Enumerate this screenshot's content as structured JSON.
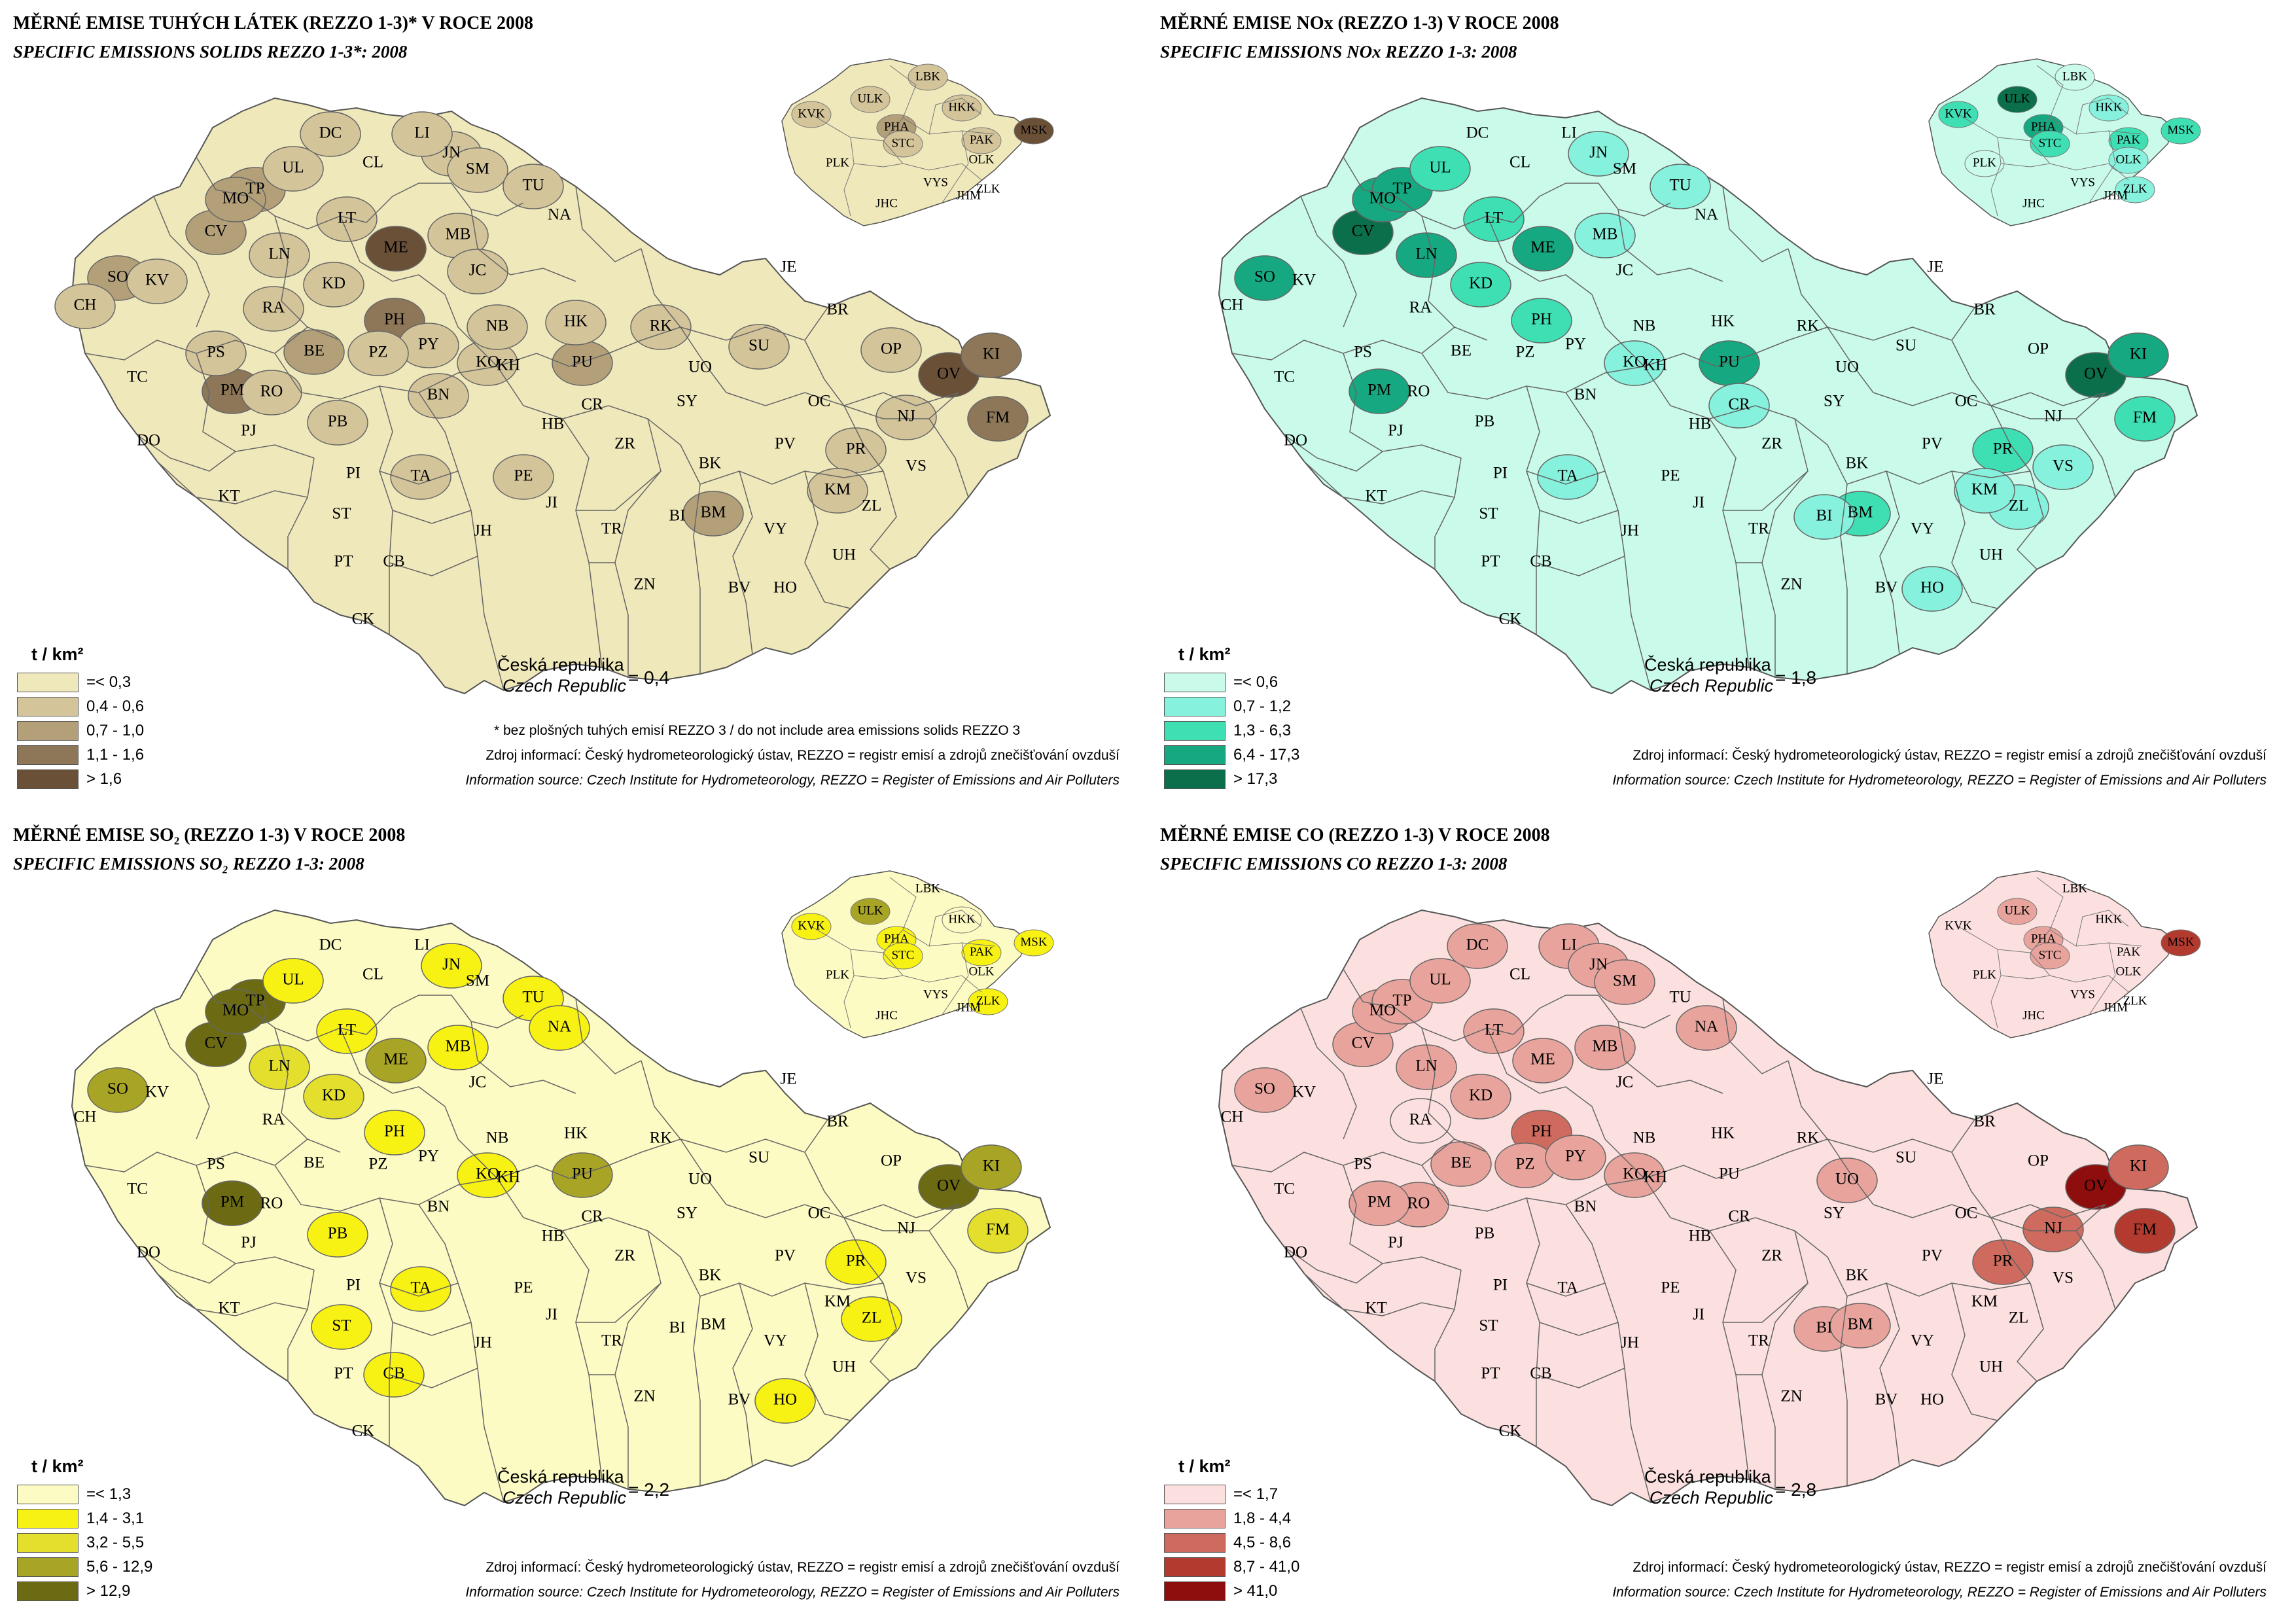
{
  "panels": [
    {
      "title": "MĚRNÉ EMISE TUHÝCH LÁTEK (REZZO 1-3)*  V ROCE 2008",
      "subtitle": "SPECIFIC EMISSIONS SOLIDS REZZO 1-3*: 2008",
      "unit": "t / km²",
      "legend": [
        {
          "label": "=<  0,3",
          "color": "#efe8bb"
        },
        {
          "label": "0,4 - 0,6",
          "color": "#d3c49a"
        },
        {
          "label": "0,7 - 1,0",
          "color": "#b3a079"
        },
        {
          "label": "1,1 - 1,6",
          "color": "#8e7758"
        },
        {
          "label": ">  1,6",
          "color": "#6b5038"
        }
      ],
      "cr_cz": "Česká republika",
      "cr_en": "Czech Republic",
      "cr_value": "=  0,4",
      "note": "* bez plošných tuhých emisí REZZO 3 / do not include area emissions solids REZZO 3",
      "source_cz": "Zdroj informací: Český hydrometeorologický ústav, REZZO = registr emisí a zdrojů znečišťování ovzduší",
      "source_en": "Information source: Czech Institute for Hydrometeorology, REZZO = Register of Emissions and Air Polluters",
      "districts": {
        "CV": 2,
        "TP": 2,
        "MO": 2,
        "SO": 2,
        "ME": 4,
        "PH": 3,
        "OV": 4,
        "KI": 3,
        "FM": 3,
        "BE": 2,
        "PM": 3,
        "PU": 2,
        "BM": 2,
        "UL": 1,
        "LT": 1,
        "LN": 1,
        "KD": 1,
        "MB": 1,
        "JN": 1,
        "SM": 1,
        "LI": 1,
        "DC": 1,
        "RA": 1,
        "PY": 1,
        "KO": 1,
        "NB": 1,
        "HK": 1,
        "RK": 1,
        "SU": 1,
        "OP": 1,
        "PR": 1,
        "NJ": 1,
        "KM": 1,
        "PZ": 1,
        "RO": 1,
        "PB": 1,
        "BN": 1,
        "TA": 1,
        "PE": 1,
        "JC": 1,
        "TU": 1,
        "PS": 1,
        "CH": 1,
        "KV": 1
      },
      "inset": {
        "PHA": 2,
        "STC": 1,
        "ULK": 1,
        "LBK": 1,
        "HKK": 1,
        "PAK": 1,
        "KVK": 1,
        "MSK": 4
      }
    },
    {
      "title": "MĚRNÉ EMISE NOx (REZZO 1-3)  V ROCE 2008",
      "subtitle": "SPECIFIC EMISSIONS NOx REZZO 1-3: 2008",
      "unit": "t / km²",
      "legend": [
        {
          "label": "=<  0,6",
          "color": "#c9faea"
        },
        {
          "label": "0,7 - 1,2",
          "color": "#86f1dc"
        },
        {
          "label": "1,3 - 6,3",
          "color": "#3fdfb4"
        },
        {
          "label": "6,4 - 17,3",
          "color": "#16a880"
        },
        {
          "label": ">  17,3",
          "color": "#0b6f4c"
        }
      ],
      "cr_cz": "Česká republika",
      "cr_en": "Czech Republic",
      "cr_value": "=  1,8",
      "note": "",
      "source_cz": "Zdroj informací: Český hydrometeorologický ústav, REZZO = registr emisí a zdrojů znečišťování ovzduší",
      "source_en": "Information source: Czech Institute for Hydrometeorology, REZZO = Register of Emissions and Air Polluters",
      "districts": {
        "CV": 4,
        "SO": 3,
        "OV": 4,
        "KI": 3,
        "FM": 2,
        "MO": 3,
        "TP": 3,
        "LN": 3,
        "ME": 3,
        "PU": 3,
        "PM": 3,
        "LT": 2,
        "KD": 2,
        "PH": 2,
        "KO": 1,
        "UL": 2,
        "MB": 1,
        "TU": 1,
        "JN": 1,
        "CR": 1,
        "TA": 1,
        "BM": 2,
        "BI": 1,
        "PR": 2,
        "HO": 1,
        "VS": 1,
        "ZL": 1,
        "KM": 1
      },
      "inset": {
        "ULK": 4,
        "KVK": 2,
        "PHA": 3,
        "STC": 2,
        "PAK": 2,
        "MSK": 2,
        "OLK": 1,
        "HKK": 1,
        "LBK": 0,
        "PLK": 0,
        "ZLK": 1
      }
    },
    {
      "title": "MĚRNÉ EMISE SO₂ (REZZO 1-3)  V ROCE 2008",
      "subtitle": "SPECIFIC EMISSIONS  SO₂ REZZO 1-3: 2008",
      "unit": "t / km²",
      "legend": [
        {
          "label": "=<  1,3",
          "color": "#fcfbc3"
        },
        {
          "label": "1,4 - 3,1",
          "color": "#f8f214"
        },
        {
          "label": "3,2 - 5,5",
          "color": "#e3df2c"
        },
        {
          "label": "5,6 - 12,9",
          "color": "#a8a425"
        },
        {
          "label": ">  12,9",
          "color": "#6c6b14"
        }
      ],
      "cr_cz": "Česká republika",
      "cr_en": "Czech Republic",
      "cr_value": "=  2,2",
      "note": "",
      "source_cz": "Zdroj informací: Český hydrometeorologický ústav, REZZO = registr emisí a zdrojů znečišťování ovzduší",
      "source_en": "Information source: Czech Institute for Hydrometeorology, REZZO = Register of Emissions and Air Polluters",
      "districts": {
        "CV": 4,
        "TP": 4,
        "MO": 4,
        "SO": 3,
        "ME": 3,
        "PU": 3,
        "OV": 4,
        "KI": 3,
        "FM": 2,
        "PM": 4,
        "LN": 2,
        "KD": 2,
        "LT": 1,
        "UL": 1,
        "MB": 1,
        "PH": 1,
        "KO": 1,
        "TU": 1,
        "NA": 1,
        "JN": 1,
        "PB": 1,
        "ST": 1,
        "TA": 1,
        "CB": 1,
        "PR": 1,
        "ZL": 1,
        "HO": 1
      },
      "inset": {
        "ULK": 3,
        "KVK": 1,
        "PHA": 1,
        "STC": 1,
        "PAK": 1,
        "MSK": 1,
        "ZLK": 1,
        "HKK": 0
      }
    },
    {
      "title": "MĚRNÉ EMISE CO  (REZZO 1-3)  V ROCE 2008",
      "subtitle": "SPECIFIC EMISSIONS CO REZZO 1-3: 2008",
      "unit": "t / km²",
      "legend": [
        {
          "label": "=< 1,7",
          "color": "#fbe0df"
        },
        {
          "label": "1,8 - 4,4",
          "color": "#e8a49c"
        },
        {
          "label": "4,5 - 8,6",
          "color": "#cf6b5e"
        },
        {
          "label": "8,7 - 41,0",
          "color": "#b33a2f"
        },
        {
          "label": ">  41,0",
          "color": "#8e0e0d"
        }
      ],
      "cr_cz": "Česká republika",
      "cr_en": "Czech Republic",
      "cr_value": "=  2,8",
      "note": "",
      "source_cz": "Zdroj informací: Český hydrometeorologický ústav, REZZO = registr emisí a zdrojů znečišťování ovzduší",
      "source_en": "Information source: Czech Institute for Hydrometeorology, REZZO = Register of Emissions and Air Polluters",
      "districts": {
        "OV": 4,
        "FM": 3,
        "KI": 2,
        "NJ": 2,
        "PR": 2,
        "SO": 1,
        "CV": 1,
        "MO": 1,
        "TP": 1,
        "UL": 1,
        "LN": 1,
        "LT": 1,
        "DC": 1,
        "LI": 1,
        "JN": 1,
        "SM": 1,
        "ME": 1,
        "MB": 1,
        "KD": 1,
        "PH": 2,
        "BE": 1,
        "PZ": 1,
        "PY": 1,
        "KO": 1,
        "RO": 1,
        "PM": 1,
        "NA": 1,
        "UO": 1,
        "BI": 1,
        "BM": 1,
        "RA": 0
      },
      "inset": {
        "ULK": 1,
        "PHA": 1,
        "STC": 1,
        "MSK": 3
      }
    }
  ],
  "district_labels": [
    "DC",
    "LI",
    "JN",
    "SM",
    "TU",
    "UL",
    "CL",
    "TP",
    "MO",
    "CV",
    "LT",
    "ME",
    "MB",
    "JC",
    "NA",
    "SO",
    "KV",
    "LN",
    "KD",
    "NB",
    "HK",
    "RK",
    "CH",
    "RA",
    "PH",
    "KO",
    "PU",
    "PS",
    "BE",
    "PZ",
    "PY",
    "KH",
    "CR",
    "TC",
    "RO",
    "PM",
    "PJ",
    "PB",
    "BN",
    "HB",
    "DO",
    "PI",
    "TA",
    "PE",
    "ZR",
    "ST",
    "KT",
    "JI",
    "PT",
    "CB",
    "JH",
    "TR",
    "CK",
    "ZN",
    "JE",
    "BR",
    "OP",
    "SU",
    "UO",
    "SY",
    "OC",
    "PV",
    "BK",
    "BI",
    "BM",
    "VY",
    "KM",
    "PR",
    "NJ",
    "OV",
    "KI",
    "FM",
    "VS",
    "ZL",
    "UH",
    "HO",
    "BV"
  ],
  "inset_labels": [
    "LBK",
    "ULK",
    "HKK",
    "KVK",
    "PHA",
    "STC",
    "PAK",
    "MSK",
    "PLK",
    "OLK",
    "JHC",
    "VYS",
    "JHM",
    "ZLK"
  ]
}
